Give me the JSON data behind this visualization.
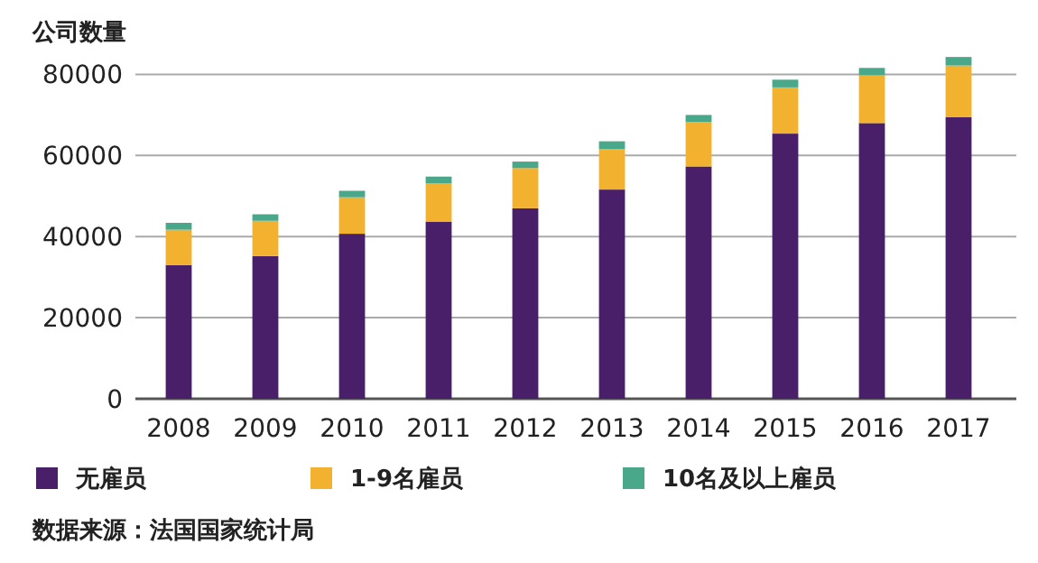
{
  "chart_data": {
    "type": "bar",
    "stacked": true,
    "ylabel": "公司数量",
    "annotations": [
      "数据来源：法国国家统计局"
    ],
    "categories": [
      "2008",
      "2009",
      "2010",
      "2011",
      "2012",
      "2013",
      "2014",
      "2015",
      "2016",
      "2017"
    ],
    "series": [
      {
        "name": "无雇员",
        "color": "#4a1f6a",
        "values": [
          33000,
          35200,
          40700,
          43700,
          47000,
          51600,
          57300,
          65400,
          68000,
          69500
        ]
      },
      {
        "name": "1-9名雇员",
        "color": "#f2b230",
        "values": [
          8700,
          8700,
          9000,
          9400,
          9900,
          10000,
          11000,
          11400,
          11800,
          12700
        ]
      },
      {
        "name": "10名及以上雇员",
        "color": "#4aa88a",
        "values": [
          1700,
          1600,
          1600,
          1700,
          1600,
          1900,
          1700,
          1900,
          1800,
          2100
        ]
      }
    ],
    "ylim": [
      0,
      85000
    ],
    "yticks": [
      0,
      20000,
      40000,
      60000,
      80000
    ],
    "grid": "y",
    "legend": "bottom"
  }
}
